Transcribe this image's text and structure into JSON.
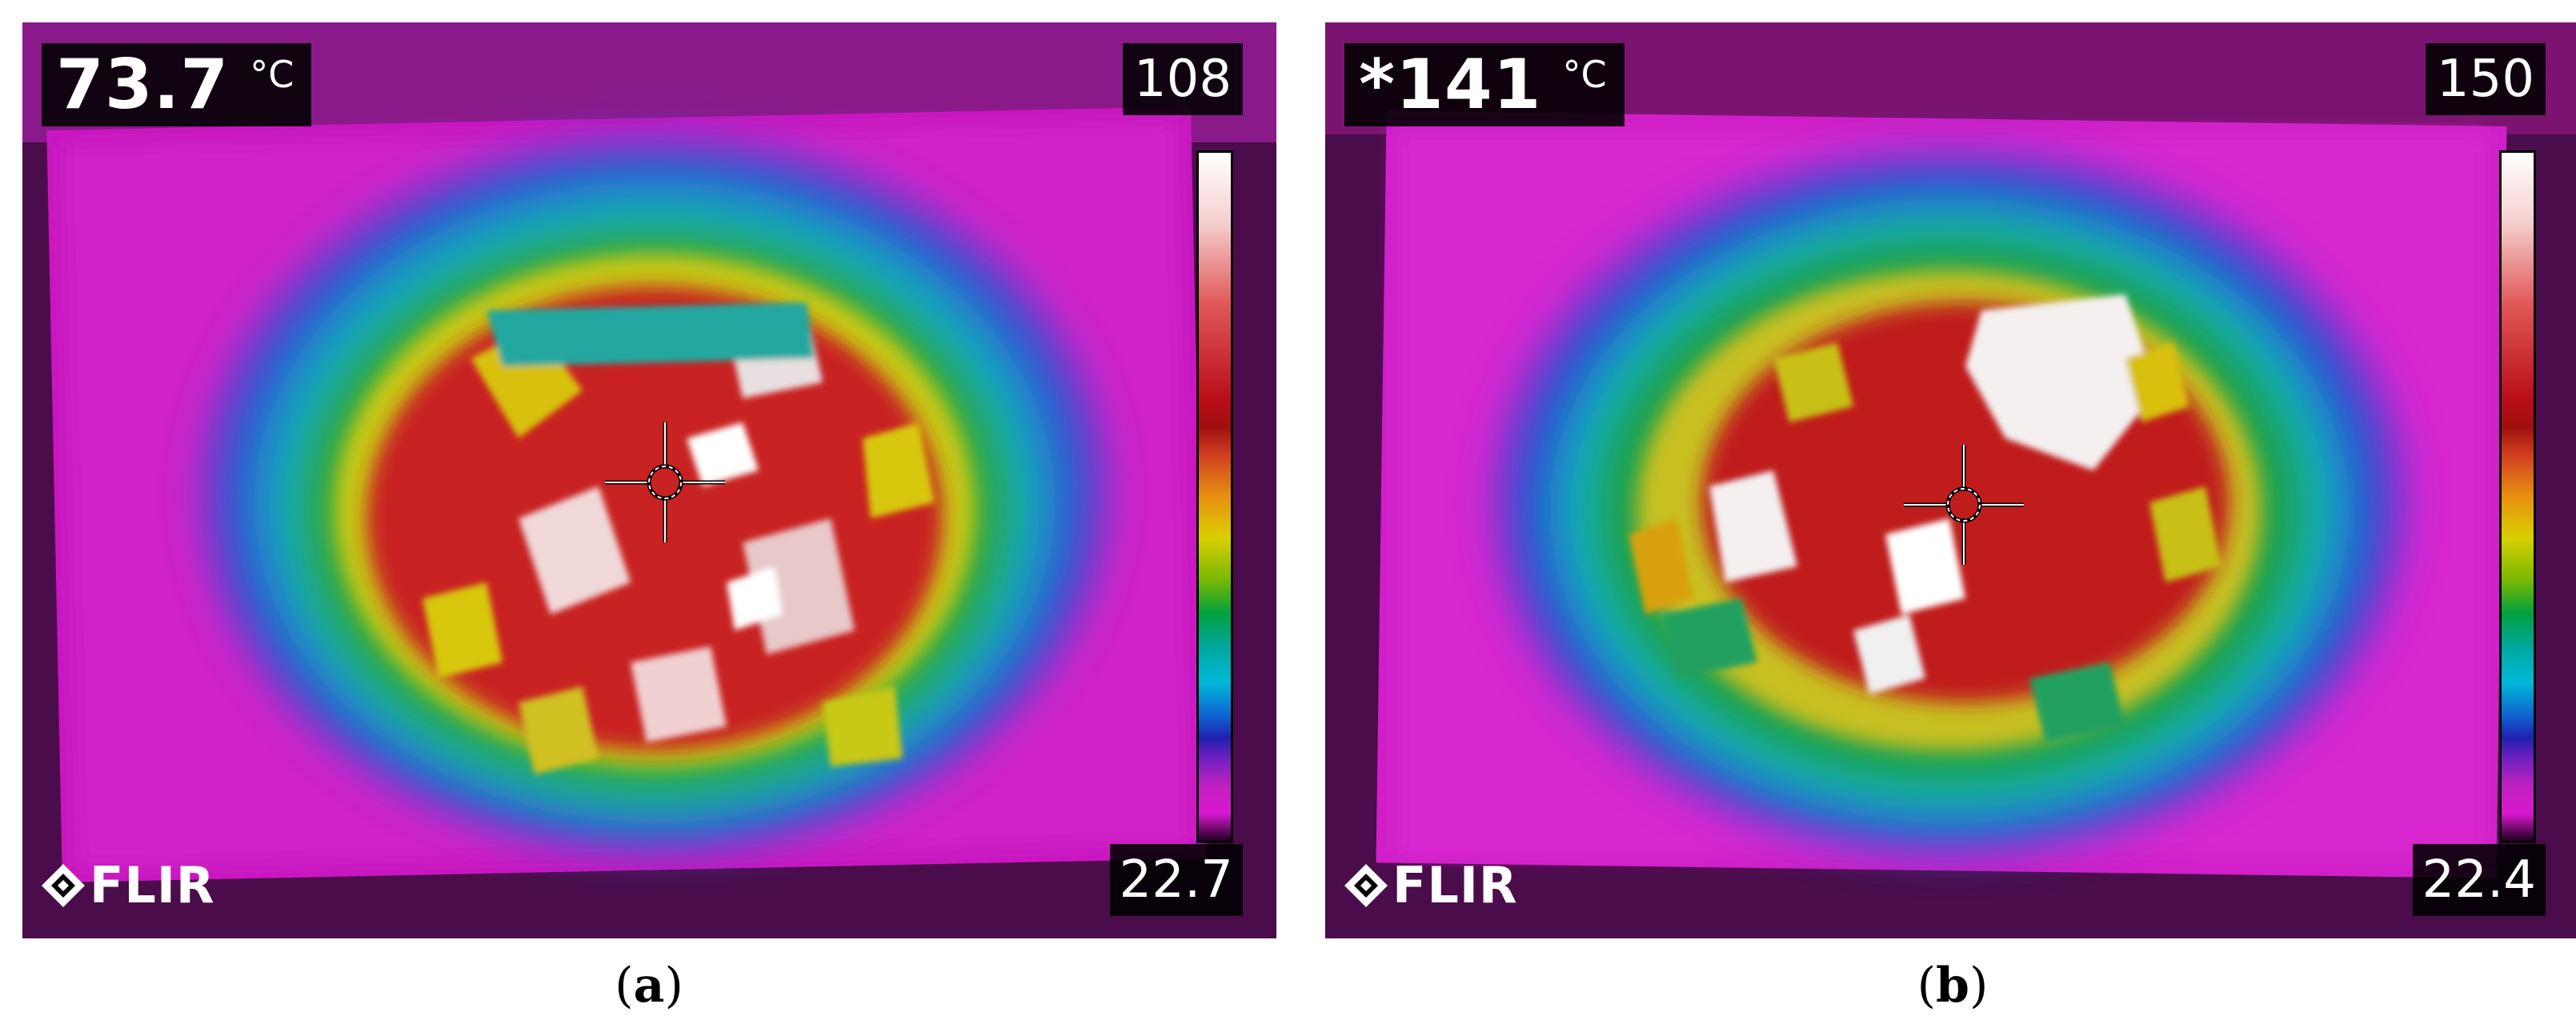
{
  "panels": [
    {
      "id": "a",
      "spot_temperature": "73.7",
      "unit": "°C",
      "scale_max": "108",
      "scale_min": "22.7",
      "logo": "FLIR",
      "caption_open": "(",
      "caption_letter": "a",
      "caption_close": ")"
    },
    {
      "id": "b",
      "spot_temperature": "*141",
      "unit": "°C",
      "scale_max": "150",
      "scale_min": "22.4",
      "logo": "FLIR",
      "caption_open": "(",
      "caption_letter": "b",
      "caption_close": ")"
    }
  ],
  "colors": {
    "background": "#3a0a3a",
    "magenta": "#d018c8",
    "blue": "#3040c8",
    "cyan": "#10b8c8",
    "green": "#20a030",
    "yellow": "#d8c810",
    "red": "#c01818",
    "white": "#ffffff"
  }
}
